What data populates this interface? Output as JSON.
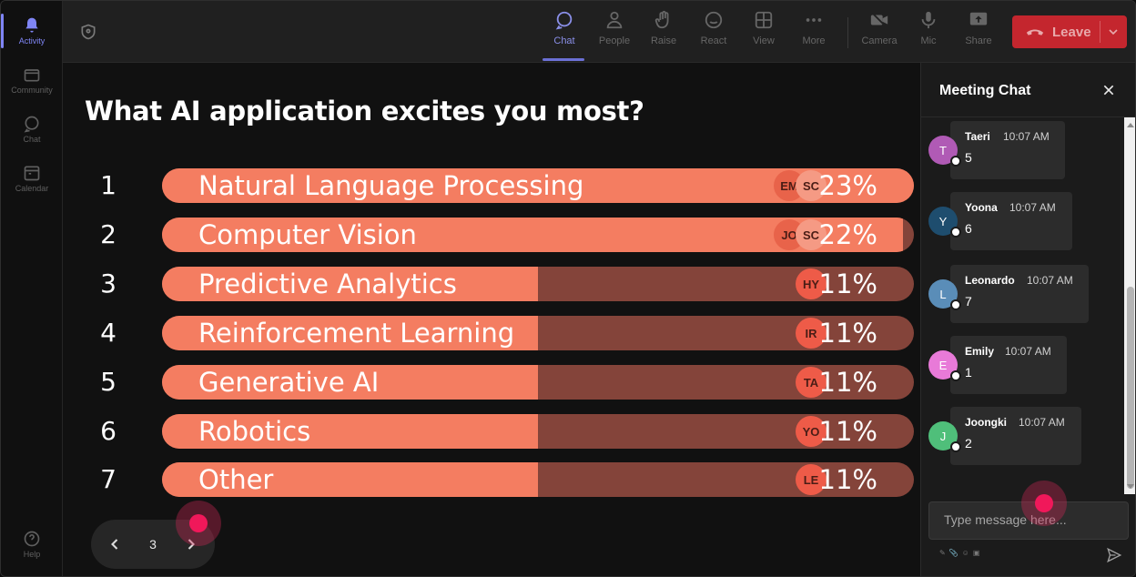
{
  "rail": {
    "items": [
      {
        "label": "Activity",
        "icon": "bell-icon",
        "active": true
      },
      {
        "label": "Community",
        "icon": "community-icon",
        "active": false
      },
      {
        "label": "Chat",
        "icon": "chat-icon",
        "active": false
      },
      {
        "label": "Calendar",
        "icon": "calendar-icon",
        "active": false
      }
    ],
    "help_label": "Help"
  },
  "toolbar": {
    "chat": "Chat",
    "people": "People",
    "raise": "Raise",
    "react": "React",
    "view": "View",
    "more": "More",
    "camera": "Camera",
    "mic": "Mic",
    "share": "Share",
    "leave": "Leave"
  },
  "poll": {
    "question": "What AI application excites you most?",
    "options": [
      {
        "rank": "1",
        "label": "Natural Language Processing",
        "percent": "23%",
        "fill": 1.0,
        "voters": [
          "EM",
          "SC"
        ]
      },
      {
        "rank": "2",
        "label": "Computer Vision",
        "percent": "22%",
        "fill": 0.985,
        "voters": [
          "JO",
          "SC"
        ]
      },
      {
        "rank": "3",
        "label": "Predictive Analytics",
        "percent": "11%",
        "fill": 0.5,
        "voters": [
          "HY"
        ]
      },
      {
        "rank": "4",
        "label": "Reinforcement Learning",
        "percent": "11%",
        "fill": 0.5,
        "voters": [
          "IR"
        ]
      },
      {
        "rank": "5",
        "label": "Generative AI",
        "percent": "11%",
        "fill": 0.5,
        "voters": [
          "TA"
        ]
      },
      {
        "rank": "6",
        "label": "Robotics",
        "percent": "11%",
        "fill": 0.5,
        "voters": [
          "YO"
        ]
      },
      {
        "rank": "7",
        "label": "Other",
        "percent": "11%",
        "fill": 0.5,
        "voters": [
          "LE"
        ]
      }
    ],
    "page": "3"
  },
  "chat": {
    "title": "Meeting Chat",
    "messages": [
      {
        "initial": "T",
        "name": "Taeri",
        "time": "10:07 AM",
        "text": "5",
        "color": "#b05ab5"
      },
      {
        "initial": "Y",
        "name": "Yoona",
        "time": "10:07 AM",
        "text": "6",
        "color": "#1e4d6e"
      },
      {
        "initial": "L",
        "name": "Leonardo",
        "time": "10:07 AM",
        "text": "7",
        "color": "#5a8db8"
      },
      {
        "initial": "E",
        "name": "Emily",
        "time": "10:07 AM",
        "text": "1",
        "color": "#e87ad8"
      },
      {
        "initial": "J",
        "name": "Joongki",
        "time": "10:07 AM",
        "text": "2",
        "color": "#4fbf7a"
      }
    ],
    "compose_placeholder": "Type message here..."
  },
  "colors": {
    "bar_fill": "#f47d61",
    "bar_track": "#84443a",
    "leave": "#c4262e",
    "accent": "#7f85f5"
  }
}
